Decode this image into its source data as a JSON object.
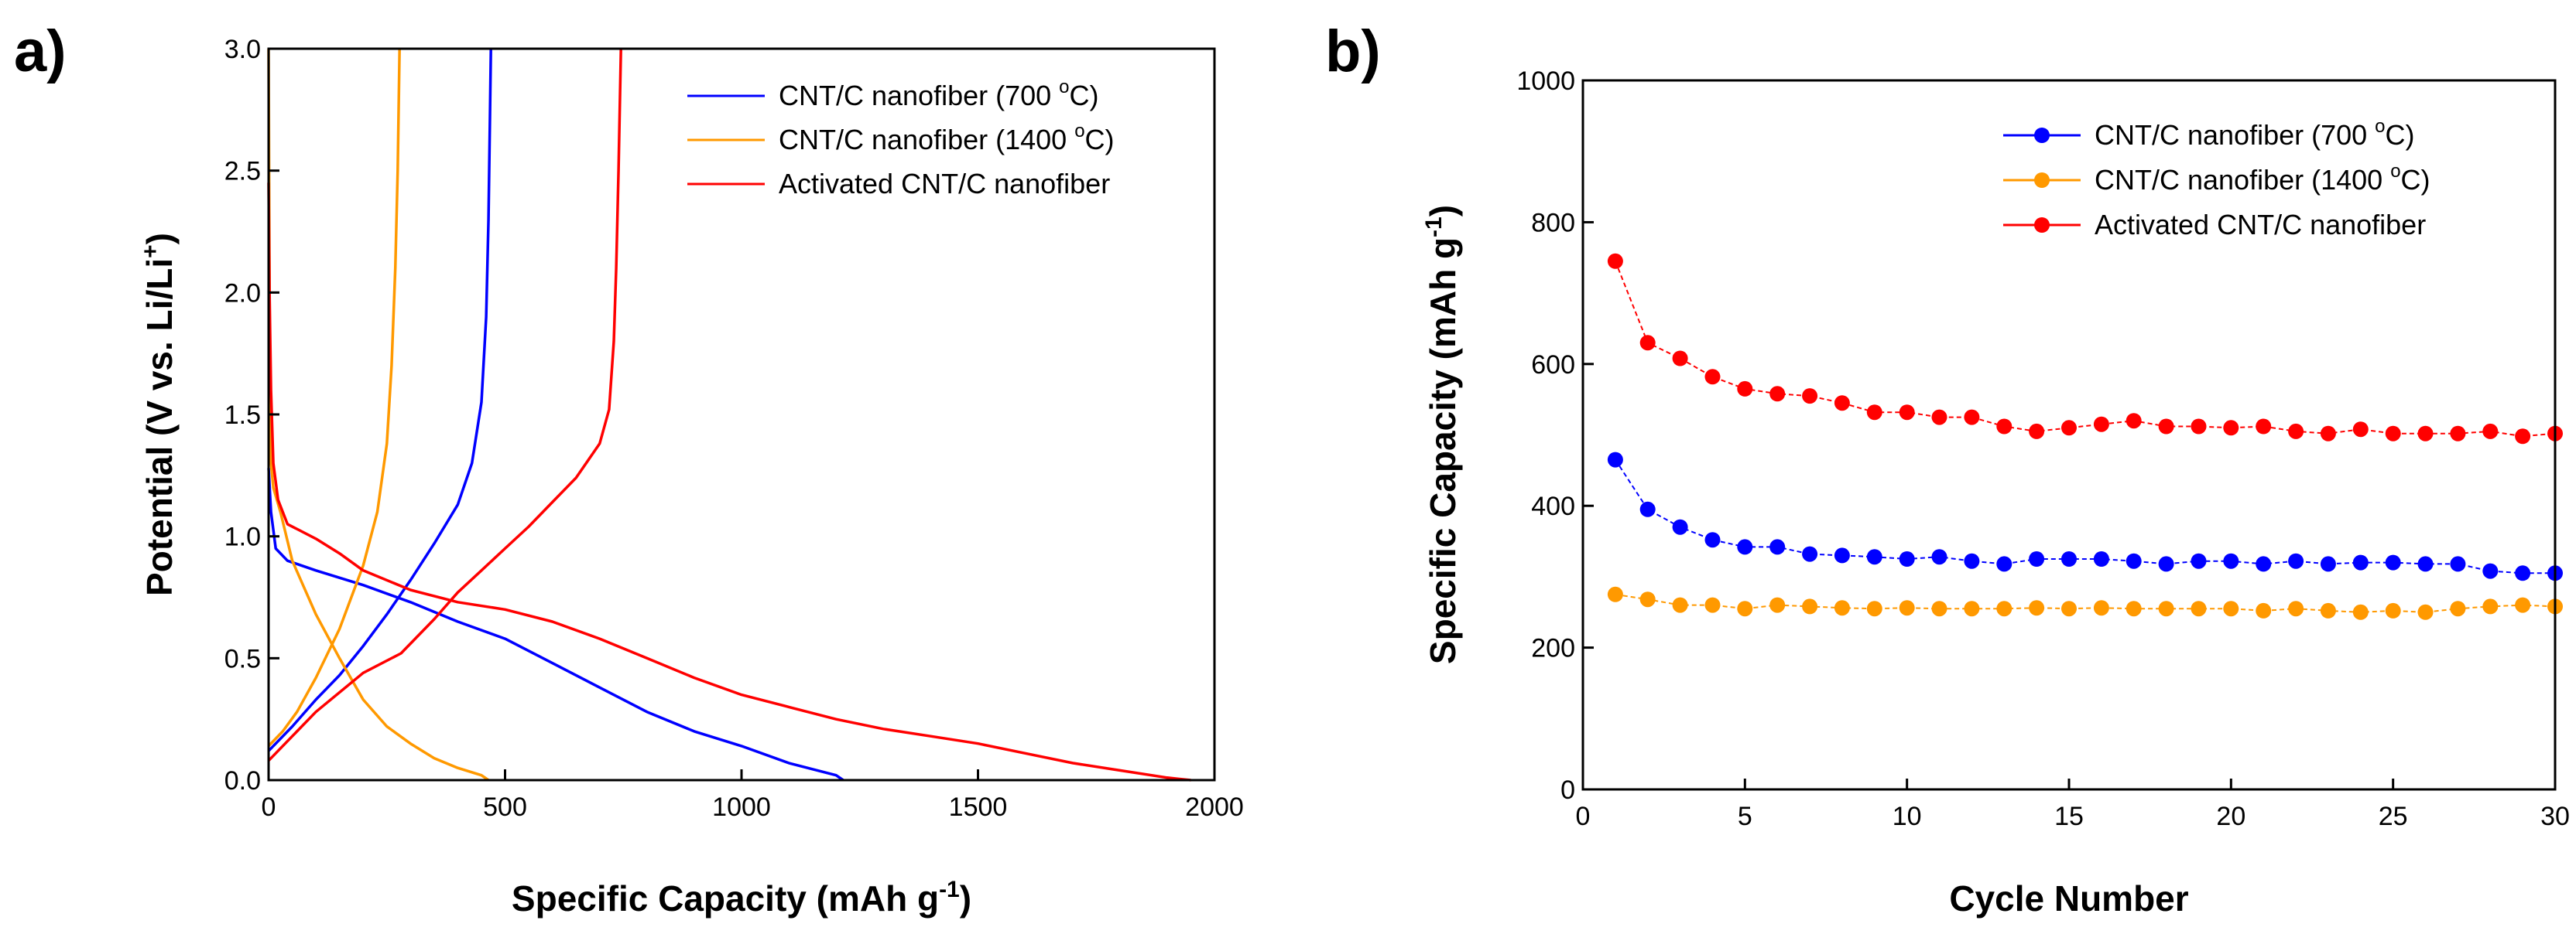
{
  "chart_data": [
    {
      "panel_label": "a)",
      "type": "line",
      "xlabel": "Specific Capacity (mAh g",
      "xlabel_sup": "-1",
      "xlabel_tail": ")",
      "ylabel": "Potential (V vs. Li/Li",
      "ylabel_sup": "+",
      "ylabel_tail": ")",
      "xlim": [
        0,
        2000
      ],
      "ylim": [
        0,
        3.0
      ],
      "xticks": [
        0,
        500,
        1000,
        1500,
        2000
      ],
      "yticks": [
        0.0,
        0.5,
        1.0,
        1.5,
        2.0,
        2.5,
        3.0
      ],
      "ytick_labels": [
        "0.0",
        "0.5",
        "1.0",
        "1.5",
        "2.0",
        "2.5",
        "3.0"
      ],
      "legend_position": "top-right",
      "series": [
        {
          "name": "CNT/C nanofiber (700 °C)",
          "legend_text": "CNT/C nanofiber (700 ",
          "legend_sup": "o",
          "legend_tail": "C)",
          "color": "#0000ff",
          "discharge": [
            [
              0,
              1.28
            ],
            [
              5,
              1.1
            ],
            [
              15,
              0.95
            ],
            [
              40,
              0.9
            ],
            [
              100,
              0.86
            ],
            [
              200,
              0.8
            ],
            [
              300,
              0.73
            ],
            [
              400,
              0.65
            ],
            [
              500,
              0.58
            ],
            [
              600,
              0.48
            ],
            [
              700,
              0.38
            ],
            [
              800,
              0.28
            ],
            [
              900,
              0.2
            ],
            [
              1000,
              0.14
            ],
            [
              1100,
              0.07
            ],
            [
              1200,
              0.02
            ],
            [
              1215,
              0.0
            ]
          ],
          "charge": [
            [
              0,
              0.12
            ],
            [
              50,
              0.22
            ],
            [
              100,
              0.33
            ],
            [
              150,
              0.43
            ],
            [
              200,
              0.55
            ],
            [
              250,
              0.68
            ],
            [
              300,
              0.82
            ],
            [
              350,
              0.97
            ],
            [
              400,
              1.13
            ],
            [
              430,
              1.3
            ],
            [
              450,
              1.55
            ],
            [
              460,
              1.9
            ],
            [
              465,
              2.3
            ],
            [
              468,
              2.7
            ],
            [
              470,
              3.0
            ]
          ]
        },
        {
          "name": "CNT/C nanofiber (1400 °C)",
          "legend_text": "CNT/C nanofiber (1400 ",
          "legend_sup": "o",
          "legend_tail": "C)",
          "color": "#ff9900",
          "discharge": [
            [
              0,
              3.0
            ],
            [
              1,
              2.5
            ],
            [
              2,
              2.0
            ],
            [
              3,
              1.6
            ],
            [
              5,
              1.3
            ],
            [
              10,
              1.2
            ],
            [
              25,
              1.1
            ],
            [
              50,
              0.9
            ],
            [
              100,
              0.68
            ],
            [
              150,
              0.5
            ],
            [
              200,
              0.33
            ],
            [
              250,
              0.22
            ],
            [
              300,
              0.15
            ],
            [
              350,
              0.09
            ],
            [
              400,
              0.05
            ],
            [
              450,
              0.02
            ],
            [
              465,
              0.0
            ]
          ],
          "charge": [
            [
              0,
              0.14
            ],
            [
              30,
              0.2
            ],
            [
              60,
              0.28
            ],
            [
              100,
              0.42
            ],
            [
              150,
              0.62
            ],
            [
              200,
              0.88
            ],
            [
              230,
              1.1
            ],
            [
              250,
              1.38
            ],
            [
              260,
              1.7
            ],
            [
              268,
              2.1
            ],
            [
              273,
              2.5
            ],
            [
              277,
              3.0
            ]
          ]
        },
        {
          "name": "Activated CNT/C nanofiber",
          "legend_text": "Activated CNT/C nanofiber",
          "legend_sup": "",
          "legend_tail": "",
          "color": "#ff0000",
          "discharge": [
            [
              0,
              2.45
            ],
            [
              2,
              2.0
            ],
            [
              5,
              1.6
            ],
            [
              10,
              1.3
            ],
            [
              20,
              1.15
            ],
            [
              40,
              1.05
            ],
            [
              100,
              0.99
            ],
            [
              150,
              0.93
            ],
            [
              200,
              0.86
            ],
            [
              300,
              0.78
            ],
            [
              400,
              0.73
            ],
            [
              500,
              0.7
            ],
            [
              600,
              0.65
            ],
            [
              700,
              0.58
            ],
            [
              800,
              0.5
            ],
            [
              900,
              0.42
            ],
            [
              1000,
              0.35
            ],
            [
              1100,
              0.3
            ],
            [
              1200,
              0.25
            ],
            [
              1300,
              0.21
            ],
            [
              1400,
              0.18
            ],
            [
              1500,
              0.15
            ],
            [
              1600,
              0.11
            ],
            [
              1700,
              0.07
            ],
            [
              1800,
              0.04
            ],
            [
              1900,
              0.01
            ],
            [
              1950,
              0.0
            ]
          ],
          "charge": [
            [
              0,
              0.08
            ],
            [
              100,
              0.28
            ],
            [
              200,
              0.44
            ],
            [
              280,
              0.52
            ],
            [
              350,
              0.66
            ],
            [
              400,
              0.77
            ],
            [
              450,
              0.86
            ],
            [
              500,
              0.95
            ],
            [
              550,
              1.04
            ],
            [
              600,
              1.14
            ],
            [
              650,
              1.24
            ],
            [
              700,
              1.38
            ],
            [
              720,
              1.52
            ],
            [
              730,
              1.8
            ],
            [
              735,
              2.1
            ],
            [
              740,
              2.5
            ],
            [
              745,
              3.0
            ]
          ]
        }
      ]
    },
    {
      "panel_label": "b)",
      "type": "line",
      "xlabel": "Cycle Number",
      "ylabel": "Specific Capacity (mAh g",
      "ylabel_sup": "-1",
      "ylabel_tail": ")",
      "xlim": [
        0,
        30
      ],
      "ylim": [
        0,
        1000
      ],
      "xticks": [
        0,
        5,
        10,
        15,
        20,
        25,
        30
      ],
      "yticks": [
        0,
        200,
        400,
        600,
        800,
        1000
      ],
      "legend_position": "top-right",
      "x": [
        1,
        2,
        3,
        4,
        5,
        6,
        7,
        8,
        9,
        10,
        11,
        12,
        13,
        14,
        15,
        16,
        17,
        18,
        19,
        20,
        21,
        22,
        23,
        24,
        25,
        26,
        27,
        28,
        29,
        30
      ],
      "series": [
        {
          "name": "CNT/C nanofiber (700 °C)",
          "legend_text": "CNT/C nanofiber (700 ",
          "legend_sup": "o",
          "legend_tail": "C)",
          "color": "#0000ff",
          "values": [
            465,
            395,
            370,
            352,
            342,
            342,
            332,
            330,
            328,
            325,
            328,
            322,
            318,
            325,
            325,
            325,
            322,
            318,
            322,
            322,
            318,
            322,
            318,
            320,
            320,
            318,
            318,
            308,
            305,
            305
          ]
        },
        {
          "name": "CNT/C nanofiber (1400 °C)",
          "legend_text": "CNT/C nanofiber (1400 ",
          "legend_sup": "o",
          "legend_tail": "C)",
          "color": "#ff9900",
          "values": [
            275,
            268,
            260,
            260,
            255,
            260,
            258,
            256,
            255,
            256,
            255,
            255,
            255,
            256,
            255,
            256,
            255,
            255,
            255,
            255,
            252,
            255,
            252,
            250,
            252,
            250,
            255,
            258,
            260,
            258
          ]
        },
        {
          "name": "Activated CNT/C nanofiber",
          "legend_text": "Activated CNT/C nanofiber",
          "legend_sup": "",
          "legend_tail": "",
          "color": "#ff0000",
          "values": [
            745,
            630,
            608,
            582,
            565,
            558,
            555,
            545,
            532,
            532,
            525,
            525,
            512,
            505,
            510,
            515,
            520,
            512,
            512,
            510,
            512,
            505,
            502,
            508,
            502,
            502,
            502,
            505,
            498,
            502
          ]
        }
      ]
    }
  ]
}
